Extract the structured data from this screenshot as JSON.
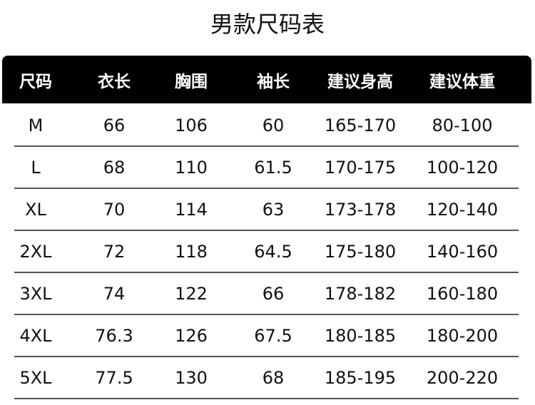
{
  "title": "男款尺码表",
  "columns": [
    "尺码",
    "衣长",
    "胸围",
    "袖长",
    "建议身高",
    "建议体重"
  ],
  "rows": [
    [
      "M",
      "66",
      "106",
      "60",
      "165-170",
      "80-100"
    ],
    [
      "L",
      "68",
      "110",
      "61.5",
      "170-175",
      "100-120"
    ],
    [
      "XL",
      "70",
      "114",
      "63",
      "173-178",
      "120-140"
    ],
    [
      "2XL",
      "72",
      "118",
      "64.5",
      "175-180",
      "140-160"
    ],
    [
      "3XL",
      "74",
      "122",
      "66",
      "178-182",
      "160-180"
    ],
    [
      "4XL",
      "76.3",
      "126",
      "67.5",
      "180-185",
      "180-200"
    ],
    [
      "5XL",
      "77.5",
      "130",
      "68",
      "185-195",
      "200-220"
    ]
  ],
  "colors": {
    "header_bg": "#000000",
    "header_text": "#ffffff",
    "divider": "#555555"
  }
}
